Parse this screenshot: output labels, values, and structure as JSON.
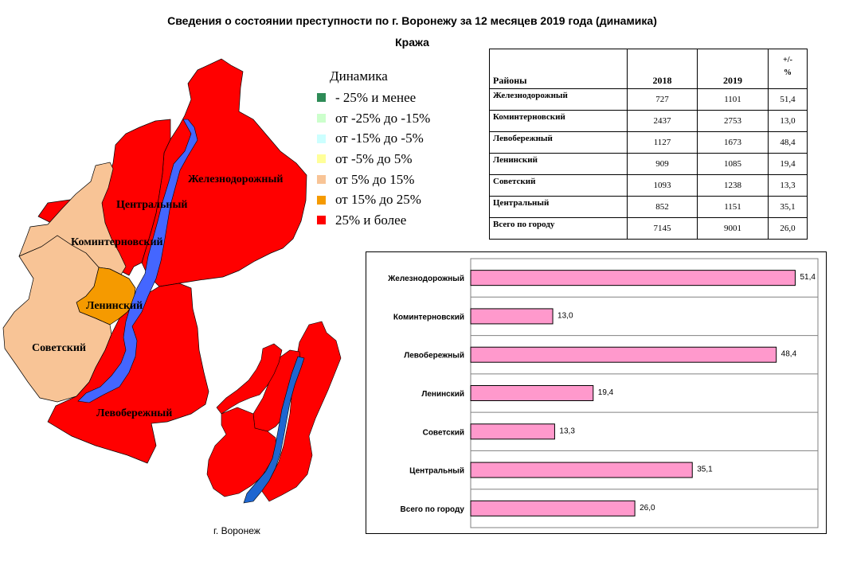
{
  "title": "Сведения о состоянии преступности по г. Воронежу за 12 месяцев 2019 года (динамика)",
  "subtitle": "Кража",
  "map": {
    "district_labels": {
      "zheleznodorozhny": "Железнодорожный",
      "tsentralny": "Центральный",
      "kominternovsky": "Коминтерновский",
      "leninsky": "Ленинский",
      "sovetsky": "Советский",
      "levoberezhny": "Левобережный"
    },
    "inset_caption": "г. Воронеж",
    "colors": {
      "red": "#ff0000",
      "peach": "#f8c496",
      "orange": "#f59a00",
      "river_main": "#4466ff",
      "river_inset": "#1f66d0"
    }
  },
  "legend": {
    "title": "Динамика",
    "items": [
      {
        "label": "- 25% и менее",
        "color": "#2e8b57"
      },
      {
        "label": "от -25% до -15%",
        "color": "#ccffcc"
      },
      {
        "label": "от -15% до -5%",
        "color": "#ccffff"
      },
      {
        "label": "от -5% до 5%",
        "color": "#ffff99"
      },
      {
        "label": "от 5% до 15%",
        "color": "#f8c496"
      },
      {
        "label": "от 15% до 25%",
        "color": "#f59a00"
      },
      {
        "label": "25% и более",
        "color": "#ff0000"
      }
    ]
  },
  "table": {
    "headers": {
      "name": "Районы",
      "y2018": "2018",
      "y2019": "2019",
      "pct_top": "+/-",
      "pct_bottom": "%"
    },
    "rows": [
      {
        "name": "Железнодорожный",
        "y2018": "727",
        "y2019": "1101",
        "pct": "51,4"
      },
      {
        "name": "Коминтерновский",
        "y2018": "2437",
        "y2019": "2753",
        "pct": "13,0"
      },
      {
        "name": "Левобережный",
        "y2018": "1127",
        "y2019": "1673",
        "pct": "48,4"
      },
      {
        "name": "Ленинский",
        "y2018": "909",
        "y2019": "1085",
        "pct": "19,4"
      },
      {
        "name": "Советский",
        "y2018": "1093",
        "y2019": "1238",
        "pct": "13,3"
      },
      {
        "name": "Центральный",
        "y2018": "852",
        "y2019": "1151",
        "pct": "35,1"
      },
      {
        "name": "Всего по городу",
        "y2018": "7145",
        "y2019": "9001",
        "pct": "26,0"
      }
    ]
  },
  "chart_data": {
    "type": "bar",
    "orientation": "horizontal",
    "categories": [
      "Железнодорожный",
      "Коминтерновский",
      "Левобережный",
      "Ленинский",
      "Советский",
      "Центральный",
      "Всего по городу"
    ],
    "values": [
      51.4,
      13.0,
      48.4,
      19.4,
      13.3,
      35.1,
      26.0
    ],
    "value_labels": [
      "51,4",
      "13,0",
      "48,4",
      "19,4",
      "13,3",
      "35,1",
      "26,0"
    ],
    "xlim": [
      0,
      55
    ],
    "bar_color": "#ff99cc",
    "grid": "horizontal"
  }
}
